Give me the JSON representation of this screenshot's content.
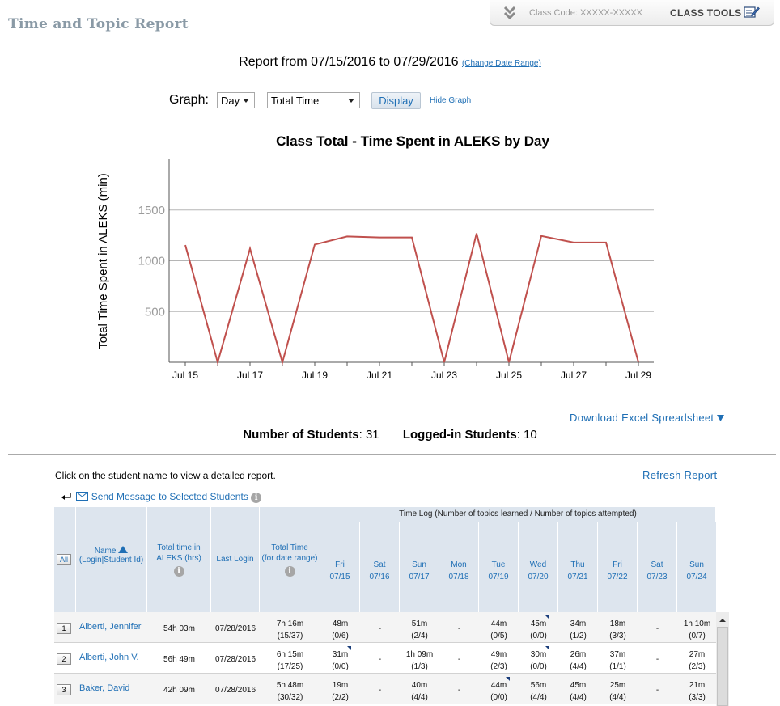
{
  "page": {
    "title": "Time and Topic Report"
  },
  "topbar": {
    "class_code": "Class Code: XXXXX-XXXXX",
    "class_tools": "CLASS TOOLS"
  },
  "report": {
    "range_text": "Report from 07/15/2016 to 07/29/2016",
    "change_date": "(Change Date Range)"
  },
  "controls": {
    "graph_label": "Graph:",
    "period_value": "Day",
    "metric_value": "Total Time",
    "display_label": "Display",
    "hide_graph": "Hide Graph"
  },
  "chart_data": {
    "type": "line",
    "title": "Class Total - Time Spent in ALEKS by Day",
    "ylabel": "Total Time Spent in ALEKS (min)",
    "xlabel": "",
    "x": [
      "Jul 15",
      "Jul 16",
      "Jul 17",
      "Jul 18",
      "Jul 19",
      "Jul 20",
      "Jul 21",
      "Jul 22",
      "Jul 23",
      "Jul 24",
      "Jul 25",
      "Jul 26",
      "Jul 27",
      "Jul 28",
      "Jul 29"
    ],
    "x_tick_labels": [
      "Jul 15",
      "Jul 17",
      "Jul 19",
      "Jul 21",
      "Jul 23",
      "Jul 25",
      "Jul 27",
      "Jul 29"
    ],
    "series": [
      {
        "values": [
          1155,
          0,
          1120,
          0,
          1160,
          1240,
          1230,
          1230,
          0,
          1270,
          0,
          1245,
          1180,
          1180,
          0
        ],
        "color": "#c0504d"
      }
    ],
    "yticks": [
      500,
      1000,
      1500
    ],
    "ylim": [
      0,
      2000
    ],
    "grid": true
  },
  "download": {
    "label": "Download Excel Spreadsheet"
  },
  "counts": {
    "students_label": "Number of Students",
    "students_value": ": 31",
    "logged_label": "Logged-in Students",
    "logged_value": ": 10"
  },
  "instructions": "Click on the student name to view a detailed report.",
  "refresh": "Refresh Report",
  "send_message": "Send Message to Selected Students",
  "table": {
    "all_label": "All",
    "headers": {
      "name": "Name",
      "name_sub": "(Login|Student Id)",
      "total_time_1": "Total time in",
      "total_time_2": "ALEKS (hrs)",
      "last_login": "Last Login",
      "total_range_1": "Total Time",
      "total_range_2": "(for date range)",
      "time_log": "Time Log (Number of topics learned / Number of topics attempted)"
    },
    "days": [
      {
        "dow": "Fri",
        "date": "07/15"
      },
      {
        "dow": "Sat",
        "date": "07/16"
      },
      {
        "dow": "Sun",
        "date": "07/17"
      },
      {
        "dow": "Mon",
        "date": "07/18"
      },
      {
        "dow": "Tue",
        "date": "07/19"
      },
      {
        "dow": "Wed",
        "date": "07/20"
      },
      {
        "dow": "Thu",
        "date": "07/21"
      },
      {
        "dow": "Fri",
        "date": "07/22"
      },
      {
        "dow": "Sat",
        "date": "07/23"
      },
      {
        "dow": "Sun",
        "date": "07/24"
      }
    ],
    "rows": [
      {
        "num": "1",
        "name": "Alberti, Jennifer",
        "total": "54h 03m",
        "last_login": "07/28/2016",
        "range_time": "7h 16m",
        "range_topics": "(15/37)",
        "days": [
          [
            "48m",
            "(0/6)"
          ],
          [
            "-",
            ""
          ],
          [
            "51m",
            "(2/4)"
          ],
          [
            "-",
            ""
          ],
          [
            "44m",
            "(0/5)"
          ],
          [
            "45m",
            "(0/0)"
          ],
          [
            "34m",
            "(1/2)"
          ],
          [
            "18m",
            "(3/3)"
          ],
          [
            "-",
            ""
          ],
          [
            "1h 10m",
            "(0/7)"
          ]
        ]
      },
      {
        "num": "2",
        "name": "Alberti, John V.",
        "total": "56h 49m",
        "last_login": "07/28/2016",
        "range_time": "6h 15m",
        "range_topics": "(17/25)",
        "days": [
          [
            "31m",
            "(0/0)"
          ],
          [
            "-",
            ""
          ],
          [
            "1h 09m",
            "(1/3)"
          ],
          [
            "-",
            ""
          ],
          [
            "49m",
            "(2/3)"
          ],
          [
            "30m",
            "(0/0)"
          ],
          [
            "26m",
            "(4/4)"
          ],
          [
            "37m",
            "(1/1)"
          ],
          [
            "-",
            ""
          ],
          [
            "27m",
            "(2/3)"
          ]
        ]
      },
      {
        "num": "3",
        "name": "Baker, David",
        "total": "42h 09m",
        "last_login": "07/28/2016",
        "range_time": "5h 48m",
        "range_topics": "(30/32)",
        "days": [
          [
            "19m",
            "(2/2)"
          ],
          [
            "-",
            ""
          ],
          [
            "40m",
            "(4/4)"
          ],
          [
            "-",
            ""
          ],
          [
            "44m",
            "(0/0)"
          ],
          [
            "56m",
            "(4/4)"
          ],
          [
            "45m",
            "(4/4)"
          ],
          [
            "25m",
            "(4/4)"
          ],
          [
            "-",
            ""
          ],
          [
            "21m",
            "(3/3)"
          ]
        ]
      }
    ]
  }
}
